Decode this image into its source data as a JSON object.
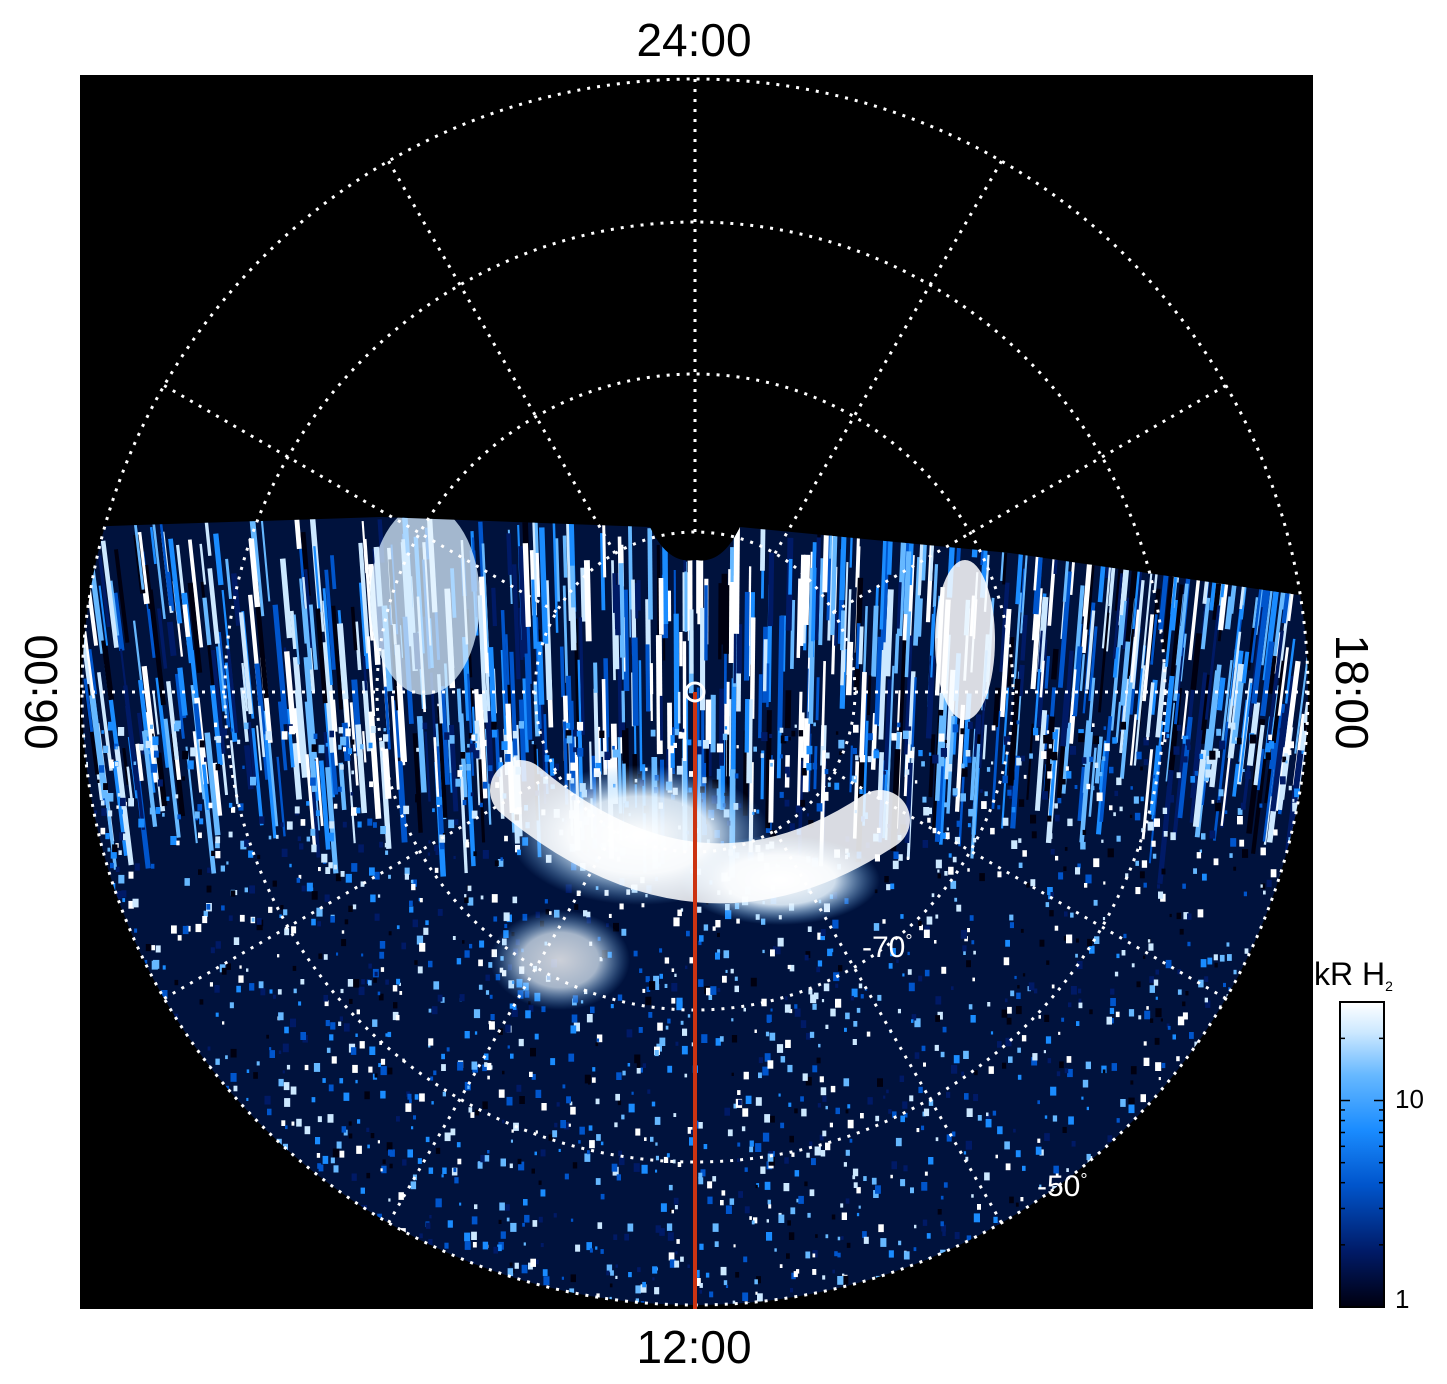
{
  "local_time_labels": {
    "top": "24:00",
    "bottom": "12:00",
    "left": "06:00",
    "right": "18:00"
  },
  "latitude_labels": [
    "-70°",
    "-50°"
  ],
  "colorbar": {
    "title_main": "kR H",
    "title_sub": "2",
    "ticks": [
      "10",
      "1"
    ],
    "colors": [
      "#000010",
      "#001a66",
      "#0055cc",
      "#1a8cff",
      "#66b8ff",
      "#cce8ff",
      "#ffffff"
    ]
  },
  "colors": {
    "background": "#000000",
    "grid": "#ffffff",
    "meridian_line": "#cc3311"
  }
}
